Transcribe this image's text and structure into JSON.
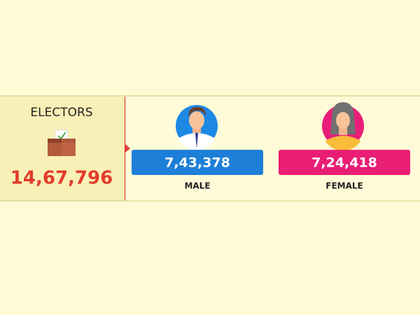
{
  "panel": {
    "title": "ELECTORS",
    "total": "14,67,796"
  },
  "groups": [
    {
      "label": "MALE",
      "count": "7,43,378"
    },
    {
      "label": "FEMALE",
      "count": "7,24,418"
    }
  ]
}
